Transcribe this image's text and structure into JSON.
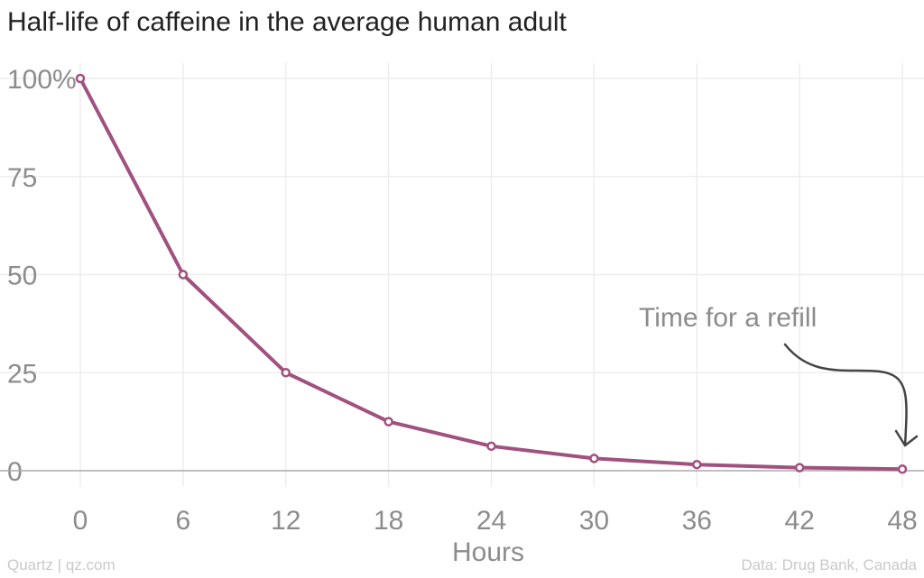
{
  "chart_data": {
    "type": "line",
    "title": "Half-life of caffeine in the average human adult",
    "xlabel": "Hours",
    "ylabel": "",
    "x": [
      0,
      6,
      12,
      18,
      24,
      30,
      36,
      42,
      48
    ],
    "series": [
      {
        "values": [
          100,
          50,
          25,
          12.5,
          6.25,
          3.125,
          1.5625,
          0.78,
          0.39
        ]
      }
    ],
    "x_ticks": [
      0,
      6,
      12,
      18,
      24,
      30,
      36,
      42,
      48
    ],
    "x_tick_labels": [
      "0",
      "6",
      "12",
      "18",
      "24",
      "30",
      "36",
      "42",
      "48"
    ],
    "y_ticks": [
      0,
      25,
      50,
      75,
      100
    ],
    "y_tick_labels": [
      "0",
      "25",
      "50",
      "75",
      "100%"
    ],
    "xlim": [
      0,
      48
    ],
    "ylim": [
      0,
      100
    ],
    "grid": true,
    "legend": "none",
    "annotation": {
      "text": "Time for a refill",
      "points_to_x": 48
    },
    "colors": {
      "line": "#a0517f",
      "marker_fill": "#ffffff",
      "grid": "#eeeeee",
      "baseline": "#aaaaaa",
      "tick_label": "#8c8c8c",
      "arrow": "#444444"
    }
  },
  "footer": {
    "credit": "Quartz | qz.com",
    "source": "Data: Drug Bank, Canada"
  }
}
